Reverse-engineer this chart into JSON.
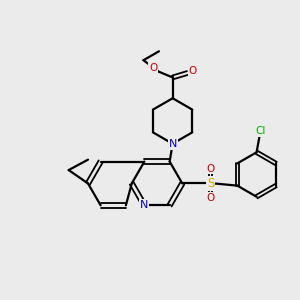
{
  "bg_color": "#ebebeb",
  "bond_color": "#000000",
  "N_color": "#0000cc",
  "O_color": "#cc0000",
  "S_color": "#ccaa00",
  "Cl_color": "#00aa00",
  "figsize": [
    3.0,
    3.0
  ],
  "dpi": 100,
  "xlim": [
    0,
    10
  ],
  "ylim": [
    0,
    10
  ]
}
